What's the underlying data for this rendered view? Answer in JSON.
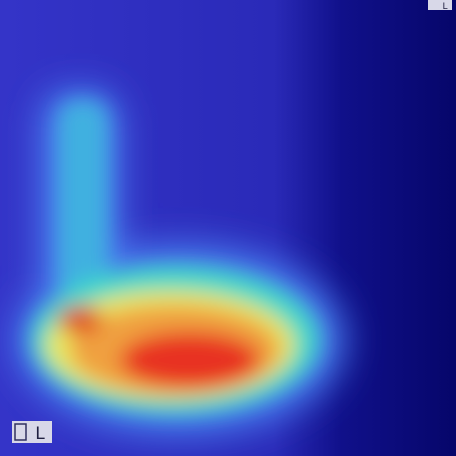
{
  "markers": {
    "bottom_left": "L",
    "top_right": "L"
  }
}
